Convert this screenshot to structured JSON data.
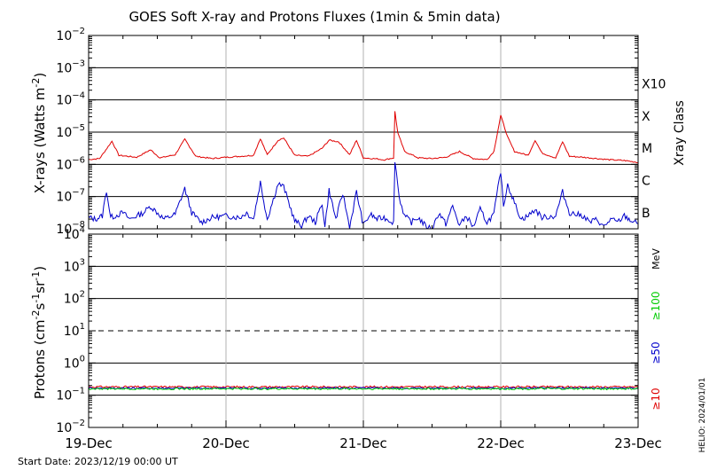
{
  "title": "GOES Soft X-ray and Protons Fluxes   (1min & 5min data)",
  "start_date": "Start Date: 2023/12/19 00:00 UT",
  "credit": "HELIO: 2024/01/01",
  "colors": {
    "xray_long": "#e00000",
    "xray_short": "#0000cc",
    "proton_10": "#e00000",
    "proton_50": "#0000cc",
    "proton_100": "#00cc00",
    "axis": "#000000",
    "day_grid": "#b0b0b0"
  },
  "chart_data": [
    {
      "type": "line",
      "name": "xray",
      "ylabel": "X-rays (Watts m",
      "ylabel_sup": "-2",
      "ylabel_end": ")",
      "yscale": "log",
      "ylim_exp": [
        -8,
        -2
      ],
      "ytick_exps": [
        -8,
        -7,
        -6,
        -5,
        -4,
        -3,
        -2
      ],
      "right_axis_title": "Xray Class",
      "flare_classes": [
        {
          "label": "B",
          "exp": -7
        },
        {
          "label": "C",
          "exp": -6
        },
        {
          "label": "M",
          "exp": -5
        },
        {
          "label": "X",
          "exp": -4
        },
        {
          "label": "X10",
          "exp": -3
        }
      ],
      "x_days": [
        0,
        1,
        2,
        3,
        4
      ],
      "series": [
        {
          "key": "long",
          "points": [
            [
              0.0,
              -5.85
            ],
            [
              0.08,
              -5.82
            ],
            [
              0.17,
              -5.28
            ],
            [
              0.22,
              -5.72
            ],
            [
              0.35,
              -5.78
            ],
            [
              0.45,
              -5.55
            ],
            [
              0.52,
              -5.8
            ],
            [
              0.63,
              -5.7
            ],
            [
              0.7,
              -5.22
            ],
            [
              0.78,
              -5.75
            ],
            [
              0.9,
              -5.82
            ],
            [
              1.0,
              -5.78
            ],
            [
              1.1,
              -5.75
            ],
            [
              1.2,
              -5.72
            ],
            [
              1.25,
              -5.2
            ],
            [
              1.3,
              -5.7
            ],
            [
              1.38,
              -5.25
            ],
            [
              1.42,
              -5.18
            ],
            [
              1.5,
              -5.72
            ],
            [
              1.6,
              -5.75
            ],
            [
              1.7,
              -5.5
            ],
            [
              1.75,
              -5.25
            ],
            [
              1.82,
              -5.3
            ],
            [
              1.9,
              -5.7
            ],
            [
              1.95,
              -5.25
            ],
            [
              2.0,
              -5.8
            ],
            [
              2.1,
              -5.83
            ],
            [
              2.15,
              -5.86
            ],
            [
              2.22,
              -5.8
            ],
            [
              2.23,
              -4.35
            ],
            [
              2.25,
              -5.02
            ],
            [
              2.3,
              -5.6
            ],
            [
              2.4,
              -5.8
            ],
            [
              2.5,
              -5.82
            ],
            [
              2.6,
              -5.78
            ],
            [
              2.7,
              -5.6
            ],
            [
              2.8,
              -5.82
            ],
            [
              2.9,
              -5.85
            ],
            [
              2.95,
              -5.6
            ],
            [
              3.0,
              -4.48
            ],
            [
              3.05,
              -5.15
            ],
            [
              3.1,
              -5.6
            ],
            [
              3.2,
              -5.72
            ],
            [
              3.25,
              -5.25
            ],
            [
              3.3,
              -5.65
            ],
            [
              3.4,
              -5.8
            ],
            [
              3.45,
              -5.3
            ],
            [
              3.5,
              -5.75
            ],
            [
              3.6,
              -5.78
            ],
            [
              3.7,
              -5.82
            ],
            [
              3.8,
              -5.86
            ],
            [
              3.9,
              -5.88
            ],
            [
              4.0,
              -5.94
            ]
          ]
        },
        {
          "key": "short",
          "points": [
            [
              0.0,
              -7.65
            ],
            [
              0.05,
              -7.7
            ],
            [
              0.1,
              -7.6
            ],
            [
              0.13,
              -6.8
            ],
            [
              0.16,
              -7.65
            ],
            [
              0.25,
              -7.5
            ],
            [
              0.3,
              -7.7
            ],
            [
              0.4,
              -7.5
            ],
            [
              0.45,
              -7.3
            ],
            [
              0.55,
              -7.7
            ],
            [
              0.63,
              -7.55
            ],
            [
              0.7,
              -6.75
            ],
            [
              0.75,
              -7.5
            ],
            [
              0.82,
              -7.8
            ],
            [
              0.9,
              -7.65
            ],
            [
              1.0,
              -7.6
            ],
            [
              1.1,
              -7.65
            ],
            [
              1.15,
              -7.5
            ],
            [
              1.2,
              -7.7
            ],
            [
              1.25,
              -6.55
            ],
            [
              1.3,
              -7.7
            ],
            [
              1.38,
              -6.6
            ],
            [
              1.42,
              -6.7
            ],
            [
              1.5,
              -7.75
            ],
            [
              1.55,
              -7.9
            ],
            [
              1.6,
              -7.6
            ],
            [
              1.65,
              -7.8
            ],
            [
              1.7,
              -7.2
            ],
            [
              1.72,
              -7.95
            ],
            [
              1.75,
              -6.8
            ],
            [
              1.8,
              -7.7
            ],
            [
              1.85,
              -6.9
            ],
            [
              1.9,
              -7.95
            ],
            [
              1.95,
              -6.85
            ],
            [
              2.0,
              -7.9
            ],
            [
              2.05,
              -7.55
            ],
            [
              2.1,
              -7.7
            ],
            [
              2.15,
              -7.65
            ],
            [
              2.22,
              -7.8
            ],
            [
              2.23,
              -5.85
            ],
            [
              2.26,
              -7.0
            ],
            [
              2.3,
              -7.6
            ],
            [
              2.35,
              -7.8
            ],
            [
              2.4,
              -7.65
            ],
            [
              2.45,
              -7.9
            ],
            [
              2.5,
              -8.0
            ],
            [
              2.55,
              -7.5
            ],
            [
              2.6,
              -7.85
            ],
            [
              2.65,
              -7.3
            ],
            [
              2.7,
              -7.9
            ],
            [
              2.75,
              -7.6
            ],
            [
              2.8,
              -7.95
            ],
            [
              2.85,
              -7.4
            ],
            [
              2.9,
              -7.8
            ],
            [
              2.95,
              -7.55
            ],
            [
              3.0,
              -6.2
            ],
            [
              3.02,
              -7.3
            ],
            [
              3.05,
              -6.6
            ],
            [
              3.1,
              -7.2
            ],
            [
              3.15,
              -7.7
            ],
            [
              3.2,
              -7.6
            ],
            [
              3.25,
              -7.4
            ],
            [
              3.3,
              -7.65
            ],
            [
              3.4,
              -7.6
            ],
            [
              3.45,
              -6.85
            ],
            [
              3.5,
              -7.5
            ],
            [
              3.6,
              -7.6
            ],
            [
              3.65,
              -7.8
            ],
            [
              3.7,
              -7.7
            ],
            [
              3.75,
              -7.95
            ],
            [
              3.8,
              -7.7
            ],
            [
              3.85,
              -7.8
            ],
            [
              3.9,
              -7.6
            ],
            [
              3.95,
              -7.75
            ],
            [
              4.0,
              -7.85
            ]
          ]
        }
      ]
    },
    {
      "type": "line",
      "name": "protons",
      "ylabel": "Protons (cm",
      "ylabel_sup1": "-2",
      "ylabel_mid1": "s",
      "ylabel_sup2": "-1",
      "ylabel_mid2": "sr",
      "ylabel_sup3": "-1",
      "ylabel_end": ")",
      "yscale": "log",
      "ylim_exp": [
        -2,
        4
      ],
      "ytick_exps": [
        -2,
        -1,
        0,
        1,
        2,
        3,
        4
      ],
      "dashed_threshold_exp": 1,
      "energy_unit": "MeV",
      "energy_labels": [
        {
          "key": "proton_100",
          "label": "≥100"
        },
        {
          "key": "proton_50",
          "label": "≥50"
        },
        {
          "key": "proton_10",
          "label": "≥10"
        }
      ],
      "x_days": [
        0,
        1,
        2,
        3,
        4
      ],
      "series": [
        {
          "key": "proton_10",
          "level_exp": -0.74
        },
        {
          "key": "proton_50",
          "level_exp": -0.78
        },
        {
          "key": "proton_100",
          "level_exp": -0.8
        }
      ]
    }
  ],
  "x_tick_labels": [
    "19-Dec",
    "20-Dec",
    "21-Dec",
    "22-Dec",
    "23-Dec"
  ]
}
